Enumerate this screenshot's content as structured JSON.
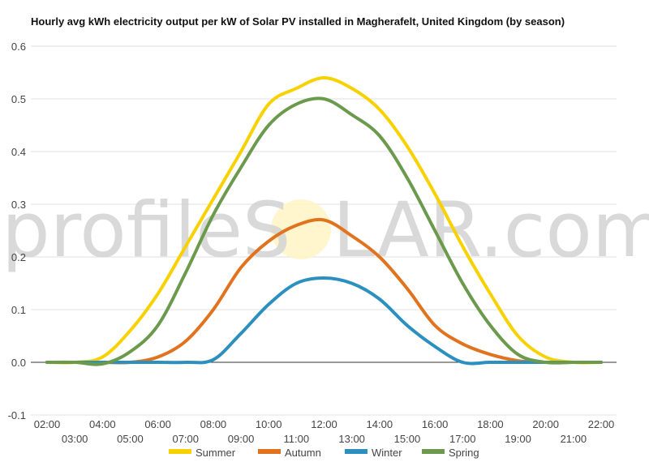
{
  "chart_data": {
    "type": "line",
    "title": "Hourly avg kWh electricity output per kW of Solar PV installed in Magherafelt, United Kingdom (by season)",
    "xlabel": "",
    "ylabel": "",
    "ylim": [
      -0.1,
      0.6
    ],
    "y_ticks": [
      "-0.1",
      "0.0",
      "0.1",
      "0.2",
      "0.3",
      "0.4",
      "0.5",
      "0.6"
    ],
    "x": [
      "02:00",
      "03:00",
      "04:00",
      "05:00",
      "06:00",
      "07:00",
      "08:00",
      "09:00",
      "10:00",
      "11:00",
      "12:00",
      "13:00",
      "14:00",
      "15:00",
      "16:00",
      "17:00",
      "18:00",
      "19:00",
      "20:00",
      "21:00",
      "22:00"
    ],
    "grid": true,
    "legend_position": "bottom",
    "series": [
      {
        "name": "Summer",
        "color": "#f7d100",
        "values": [
          0.0,
          0.0,
          0.01,
          0.06,
          0.13,
          0.22,
          0.31,
          0.4,
          0.49,
          0.52,
          0.54,
          0.52,
          0.48,
          0.41,
          0.32,
          0.22,
          0.13,
          0.05,
          0.01,
          0.0,
          0.0
        ]
      },
      {
        "name": "Autumn",
        "color": "#e2731e",
        "values": [
          0.0,
          0.0,
          0.0,
          0.0,
          0.01,
          0.04,
          0.1,
          0.18,
          0.23,
          0.26,
          0.27,
          0.24,
          0.2,
          0.14,
          0.07,
          0.035,
          0.015,
          0.003,
          0.0,
          0.0,
          0.0
        ]
      },
      {
        "name": "Winter",
        "color": "#2b90bf",
        "values": [
          0.0,
          0.0,
          0.0,
          0.0,
          0.0,
          0.0,
          0.005,
          0.055,
          0.11,
          0.15,
          0.16,
          0.15,
          0.12,
          0.07,
          0.03,
          0.0,
          0.0,
          0.0,
          0.0,
          0.0,
          0.0
        ]
      },
      {
        "name": "Spring",
        "color": "#6c9a4d",
        "values": [
          0.0,
          0.0,
          -0.003,
          0.02,
          0.07,
          0.17,
          0.28,
          0.37,
          0.45,
          0.49,
          0.5,
          0.47,
          0.43,
          0.35,
          0.25,
          0.15,
          0.07,
          0.015,
          0.0,
          0.0,
          0.0
        ]
      }
    ]
  },
  "watermark": {
    "left": "profileS",
    "right": "LAR.com"
  }
}
